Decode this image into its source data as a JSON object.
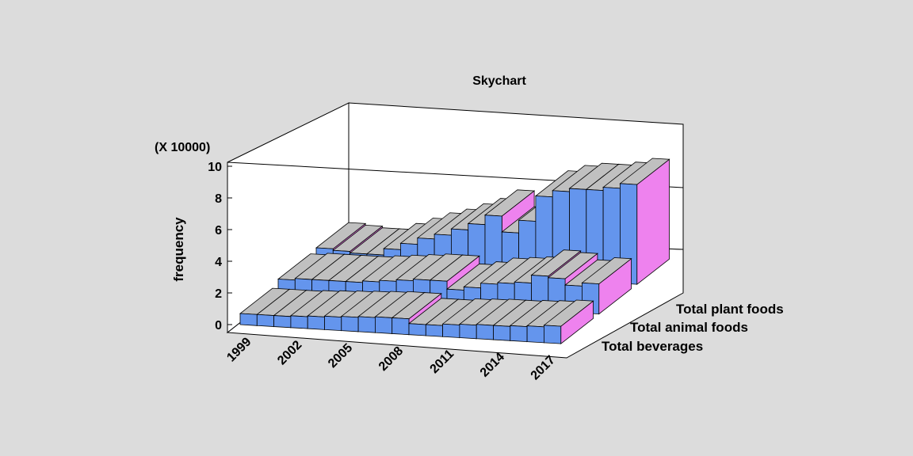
{
  "chart_data": {
    "type": "bar",
    "subtype": "3d-skychart",
    "title": "Skychart",
    "ylabel": "frequency",
    "yscale_label": "(X 10000)",
    "ylim": [
      0,
      10
    ],
    "yticks": [
      "0",
      "2",
      "4",
      "6",
      "8",
      "10"
    ],
    "xtick_labels": [
      "1999",
      "2002",
      "2005",
      "2008",
      "2011",
      "2014",
      "2017"
    ],
    "categories": [
      "1999",
      "2000",
      "2001",
      "2002",
      "2003",
      "2004",
      "2005",
      "2006",
      "2007",
      "2008",
      "2009",
      "2010",
      "2011",
      "2012",
      "2013",
      "2014",
      "2015",
      "2016",
      "2017"
    ],
    "series": [
      {
        "name": "Total beverages",
        "values": [
          0.7,
          0.7,
          0.7,
          0.75,
          0.8,
          0.85,
          0.9,
          0.95,
          1.0,
          1.0,
          0.7,
          0.7,
          0.8,
          0.85,
          0.9,
          0.9,
          0.95,
          1.0,
          1.1
        ]
      },
      {
        "name": "Total animal foods",
        "values": [
          1.0,
          1.1,
          1.1,
          1.1,
          1.1,
          1.2,
          1.3,
          1.4,
          1.5,
          1.5,
          1.0,
          1.2,
          1.5,
          1.6,
          1.7,
          2.2,
          2.1,
          1.7,
          1.9
        ]
      },
      {
        "name": "Total plant foods",
        "values": [
          1.1,
          1.0,
          0.9,
          0.9,
          1.3,
          1.7,
          2.1,
          2.4,
          2.8,
          3.2,
          3.8,
          2.8,
          3.6,
          5.2,
          5.6,
          5.8,
          5.8,
          6.0,
          6.3
        ]
      }
    ],
    "colors": {
      "front": "#6495ed",
      "top": "#c0c0c0",
      "side": "#ee82ee",
      "background": "#dcdcdc"
    }
  }
}
